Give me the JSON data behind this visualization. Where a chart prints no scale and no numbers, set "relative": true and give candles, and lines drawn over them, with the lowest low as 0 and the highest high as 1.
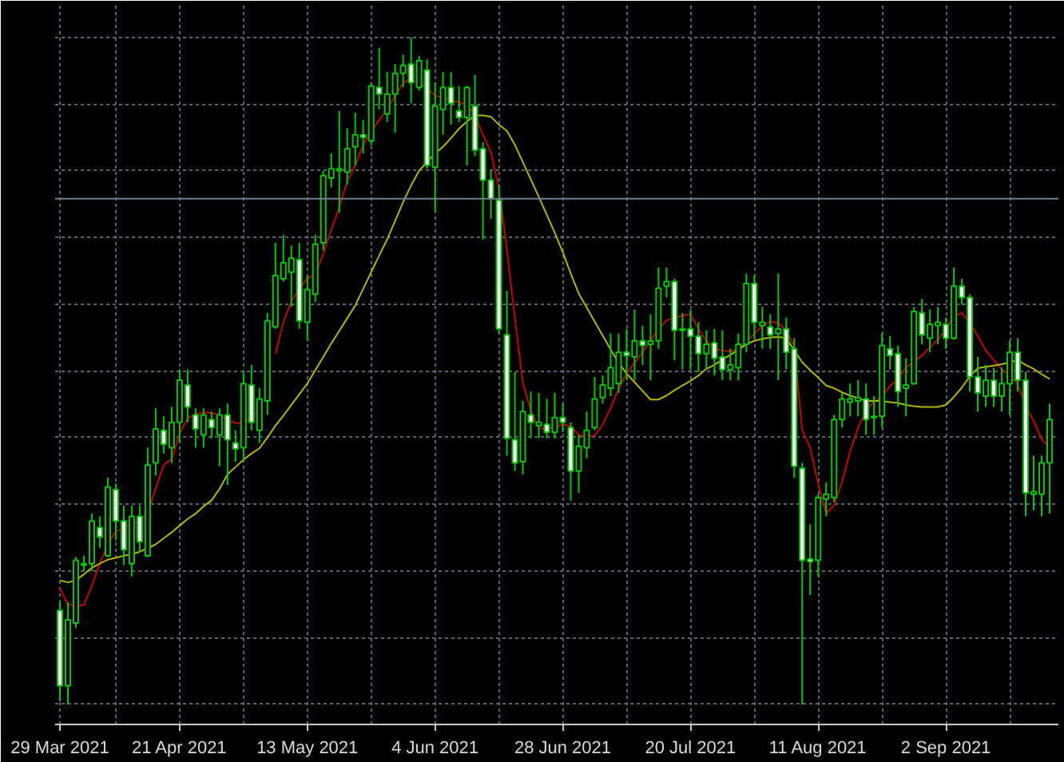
{
  "chart_data": {
    "type": "candlestick",
    "relative": true,
    "color": "#00c800",
    "grid": true,
    "categories": [
      "29 Mar 2021",
      null,
      null,
      null,
      null,
      null,
      null,
      null,
      null,
      null,
      null,
      null,
      null,
      null,
      null,
      "21 Apr 2021",
      null,
      null,
      null,
      null,
      null,
      null,
      null,
      null,
      null,
      null,
      null,
      null,
      null,
      null,
      null,
      "13 May 2021",
      null,
      null,
      null,
      null,
      null,
      null,
      null,
      null,
      null,
      null,
      null,
      null,
      null,
      null,
      null,
      "4 Jun 2021",
      null,
      null,
      null,
      null,
      null,
      null,
      null,
      null,
      null,
      null,
      null,
      null,
      null,
      null,
      null,
      "28 Jun 2021",
      null,
      null,
      null,
      null,
      null,
      null,
      null,
      null,
      null,
      null,
      null,
      null,
      null,
      null,
      null,
      "20 Jul 2021",
      null,
      null,
      null,
      null,
      null,
      null,
      null,
      null,
      null,
      null,
      null,
      null,
      null,
      null,
      null,
      "11 Aug 2021",
      null,
      null,
      null,
      null,
      null,
      null,
      null,
      null,
      null,
      null,
      null,
      null,
      null,
      null,
      null,
      "2 Sep 2021",
      null,
      null,
      null,
      null,
      null,
      null,
      null,
      null,
      null,
      null,
      null,
      null,
      null
    ],
    "ohlc": [
      [
        0.141,
        0.153,
        0.005,
        0.028
      ],
      [
        0.028,
        0.153,
        0,
        0.127
      ],
      [
        0.122,
        0.221,
        0.115,
        0.216
      ],
      [
        0.209,
        0.223,
        0.2,
        0.211
      ],
      [
        0.211,
        0.286,
        0.2,
        0.275
      ],
      [
        0.265,
        0.282,
        0.235,
        0.251
      ],
      [
        0.223,
        0.34,
        0.221,
        0.326
      ],
      [
        0.322,
        0.331,
        0.246,
        0.275
      ],
      [
        0.275,
        0.298,
        0.209,
        0.232
      ],
      [
        0.211,
        0.298,
        0.192,
        0.282
      ],
      [
        0.282,
        0.298,
        0.228,
        0.244
      ],
      [
        0.223,
        0.385,
        0.221,
        0.359
      ],
      [
        0.362,
        0.444,
        0.343,
        0.413
      ],
      [
        0.411,
        0.432,
        0.376,
        0.39
      ],
      [
        0.385,
        0.446,
        0.362,
        0.423
      ],
      [
        0.423,
        0.502,
        0.392,
        0.486
      ],
      [
        0.479,
        0.502,
        0.423,
        0.446
      ],
      [
        0.434,
        0.444,
        0.385,
        0.413
      ],
      [
        0.404,
        0.444,
        0.385,
        0.434
      ],
      [
        0.427,
        0.439,
        0.399,
        0.415
      ],
      [
        0.404,
        0.444,
        0.357,
        0.434
      ],
      [
        0.434,
        0.451,
        0.329,
        0.397
      ],
      [
        0.392,
        0.411,
        0.364,
        0.383
      ],
      [
        0.385,
        0.498,
        0.364,
        0.481
      ],
      [
        0.479,
        0.509,
        0.411,
        0.423
      ],
      [
        0.411,
        0.474,
        0.392,
        0.458
      ],
      [
        0.455,
        0.587,
        0.434,
        0.575
      ],
      [
        0.566,
        0.692,
        0.563,
        0.643
      ],
      [
        0.638,
        0.704,
        0.634,
        0.662
      ],
      [
        0.648,
        0.688,
        0.596,
        0.669
      ],
      [
        0.667,
        0.692,
        0.563,
        0.575
      ],
      [
        0.573,
        0.643,
        0.545,
        0.622
      ],
      [
        0.615,
        0.704,
        0.603,
        0.69
      ],
      [
        0.692,
        0.8,
        0.681,
        0.793
      ],
      [
        0.789,
        0.826,
        0.775,
        0.803
      ],
      [
        0.8,
        0.89,
        0.737,
        0.803
      ],
      [
        0.798,
        0.864,
        0.779,
        0.833
      ],
      [
        0.836,
        0.887,
        0.808,
        0.854
      ],
      [
        0.854,
        0.876,
        0.826,
        0.85
      ],
      [
        0.845,
        0.932,
        0.838,
        0.927
      ],
      [
        0.925,
        0.984,
        0.892,
        0.915
      ],
      [
        0.885,
        0.948,
        0.873,
        0.915
      ],
      [
        0.915,
        0.96,
        0.857,
        0.946
      ],
      [
        0.946,
        0.974,
        0.925,
        0.958
      ],
      [
        0.96,
        1,
        0.901,
        0.932
      ],
      [
        0.925,
        0.972,
        0.92,
        0.965
      ],
      [
        0.951,
        0.967,
        0.803,
        0.808
      ],
      [
        0.805,
        0.932,
        0.739,
        0.897
      ],
      [
        0.892,
        0.948,
        0.854,
        0.925
      ],
      [
        0.925,
        0.948,
        0.869,
        0.901
      ],
      [
        0.89,
        0.927,
        0.873,
        0.88
      ],
      [
        0.88,
        0.927,
        0.808,
        0.925
      ],
      [
        0.897,
        0.944,
        0.822,
        0.831
      ],
      [
        0.833,
        0.843,
        0.697,
        0.786
      ],
      [
        0.786,
        0.8,
        0.728,
        0.758
      ],
      [
        0.756,
        0.779,
        0.556,
        0.563
      ],
      [
        0.554,
        0.62,
        0.373,
        0.399
      ],
      [
        0.397,
        0.498,
        0.35,
        0.362
      ],
      [
        0.364,
        0.455,
        0.345,
        0.439
      ],
      [
        0.434,
        0.469,
        0.399,
        0.423
      ],
      [
        0.418,
        0.467,
        0.399,
        0.423
      ],
      [
        0.42,
        0.458,
        0.399,
        0.408
      ],
      [
        0.408,
        0.467,
        0.399,
        0.43
      ],
      [
        0.43,
        0.451,
        0.408,
        0.423
      ],
      [
        0.415,
        0.423,
        0.305,
        0.35
      ],
      [
        0.35,
        0.404,
        0.317,
        0.387
      ],
      [
        0.385,
        0.439,
        0.369,
        0.411
      ],
      [
        0.415,
        0.491,
        0.411,
        0.458
      ],
      [
        0.46,
        0.493,
        0.451,
        0.479
      ],
      [
        0.474,
        0.556,
        0.462,
        0.505
      ],
      [
        0.481,
        0.556,
        0.467,
        0.528
      ],
      [
        0.528,
        0.563,
        0.486,
        0.523
      ],
      [
        0.521,
        0.592,
        0.486,
        0.545
      ],
      [
        0.545,
        0.568,
        0.509,
        0.538
      ],
      [
        0.54,
        0.585,
        0.486,
        0.545
      ],
      [
        0.545,
        0.655,
        0.533,
        0.624
      ],
      [
        0.627,
        0.655,
        0.61,
        0.634
      ],
      [
        0.634,
        0.638,
        0.516,
        0.561
      ],
      [
        0.563,
        0.587,
        0.502,
        0.561
      ],
      [
        0.563,
        0.592,
        0.502,
        0.552
      ],
      [
        0.552,
        0.573,
        0.498,
        0.526
      ],
      [
        0.526,
        0.561,
        0.502,
        0.54
      ],
      [
        0.542,
        0.563,
        0.493,
        0.519
      ],
      [
        0.521,
        0.561,
        0.486,
        0.502
      ],
      [
        0.502,
        0.533,
        0.486,
        0.509
      ],
      [
        0.505,
        0.556,
        0.486,
        0.54
      ],
      [
        0.54,
        0.646,
        0.528,
        0.631
      ],
      [
        0.631,
        0.643,
        0.549,
        0.573
      ],
      [
        0.568,
        0.596,
        0.533,
        0.573
      ],
      [
        0.566,
        0.585,
        0.533,
        0.554
      ],
      [
        0.556,
        0.646,
        0.486,
        0.563
      ],
      [
        0.563,
        0.58,
        0.502,
        0.528
      ],
      [
        0.533,
        0.549,
        0.34,
        0.357
      ],
      [
        0.354,
        0.362,
        0,
        0.216
      ],
      [
        0.218,
        0.27,
        0.164,
        0.214
      ],
      [
        0.216,
        0.315,
        0.192,
        0.31
      ],
      [
        0.308,
        0.333,
        0.282,
        0.315
      ],
      [
        0.31,
        0.434,
        0.303,
        0.427
      ],
      [
        0.427,
        0.467,
        0.415,
        0.458
      ],
      [
        0.453,
        0.481,
        0.432,
        0.458
      ],
      [
        0.455,
        0.486,
        0.432,
        0.46
      ],
      [
        0.458,
        0.481,
        0.404,
        0.427
      ],
      [
        0.43,
        0.462,
        0.404,
        0.432
      ],
      [
        0.432,
        0.556,
        0.415,
        0.538
      ],
      [
        0.533,
        0.552,
        0.502,
        0.523
      ],
      [
        0.526,
        0.538,
        0.446,
        0.469
      ],
      [
        0.474,
        0.519,
        0.432,
        0.479
      ],
      [
        0.481,
        0.596,
        0.479,
        0.589
      ],
      [
        0.587,
        0.608,
        0.54,
        0.554
      ],
      [
        0.549,
        0.592,
        0.528,
        0.57
      ],
      [
        0.568,
        0.596,
        0.54,
        0.573
      ],
      [
        0.57,
        0.58,
        0.533,
        0.549
      ],
      [
        0.549,
        0.655,
        0.547,
        0.627
      ],
      [
        0.627,
        0.638,
        0.599,
        0.61
      ],
      [
        0.61,
        0.615,
        0.469,
        0.491
      ],
      [
        0.491,
        0.521,
        0.439,
        0.467
      ],
      [
        0.462,
        0.509,
        0.446,
        0.486
      ],
      [
        0.486,
        0.505,
        0.446,
        0.462
      ],
      [
        0.462,
        0.505,
        0.439,
        0.481
      ],
      [
        0.481,
        0.545,
        0.434,
        0.528
      ],
      [
        0.528,
        0.549,
        0.469,
        0.486
      ],
      [
        0.486,
        0.498,
        0.282,
        0.317
      ],
      [
        0.315,
        0.373,
        0.291,
        0.319
      ],
      [
        0.315,
        0.373,
        0.282,
        0.362
      ],
      [
        0.362,
        0.451,
        0.286,
        0.427
      ]
    ],
    "series": [
      {
        "type": "line",
        "color": "#c80000",
        "values": [
          0.174,
          0.15,
          0.148,
          0.149,
          0.178,
          0.211,
          0.241,
          0.259,
          0.265,
          0.271,
          0.275,
          0.287,
          0.324,
          0.359,
          0.368,
          0.406,
          0.429,
          0.435,
          0.438,
          0.437,
          0.434,
          0.426,
          0.422,
          0.421,
          0.432,
          0.442,
          null,
          0.526,
          0.573,
          0.605,
          0.622,
          0.639,
          0.644,
          0.676,
          0.712,
          0.745,
          0.784,
          0.808,
          0.839,
          0.859,
          0.876,
          0.892,
          0.913,
          0.932,
          0.937,
          0.932,
          0.923,
          0.913,
          0.909,
          0.906,
          0.903,
          0.899,
          0.883,
          0.854,
          0.828,
          0.774,
          0.683,
          0.58,
          0.482,
          0.441,
          0.414,
          0.413,
          0.416,
          0.42,
          0.417,
          0.404,
          0.401,
          0.403,
          0.419,
          0.444,
          0.473,
          0.496,
          0.512,
          0.528,
          0.546,
          0.562,
          0.576,
          0.579,
          0.583,
          0.585,
          0.563,
          0.545,
          0.533,
          0.531,
          0.529,
          0.533,
          0.544,
          0.556,
          0.567,
          0.574,
          0.572,
          0.561,
          0.537,
          0.411,
          0.385,
          0.331,
          0.286,
          0.299,
          0.334,
          0.379,
          0.415,
          0.441,
          0.454,
          0.462,
          0.477,
          0.488,
          0.505,
          0.514,
          0.523,
          0.535,
          0.547,
          0.562,
          0.582,
          0.587,
          0.572,
          0.552,
          0.531,
          0.516,
          0.503,
          0.493,
          0.481,
          0.447,
          0.425,
          0.398,
          0.385
        ]
      },
      {
        "type": "line",
        "color": "#b4b400",
        "values": [
          0.186,
          0.183,
          0.186,
          0.195,
          0.205,
          0.211,
          0.217,
          0.22,
          0.223,
          0.225,
          0.229,
          0.234,
          0.24,
          0.249,
          0.258,
          0.268,
          0.278,
          0.286,
          0.297,
          0.306,
          0.323,
          0.345,
          0.356,
          0.367,
          0.376,
          0.384,
          0.4,
          0.418,
          0.433,
          0.449,
          0.465,
          0.481,
          0.501,
          0.521,
          0.541,
          0.56,
          0.579,
          0.598,
          0.623,
          0.648,
          0.673,
          0.697,
          0.725,
          0.753,
          0.778,
          0.8,
          0.813,
          0.826,
          0.836,
          0.849,
          0.863,
          0.874,
          0.883,
          0.883,
          0.881,
          0.869,
          0.86,
          0.839,
          0.813,
          0.787,
          0.761,
          0.734,
          0.707,
          0.678,
          0.646,
          0.616,
          0.595,
          0.574,
          0.553,
          0.532,
          0.512,
          0.496,
          0.483,
          0.47,
          0.457,
          0.457,
          0.463,
          0.471,
          0.478,
          0.485,
          0.493,
          0.503,
          0.509,
          0.517,
          0.524,
          0.532,
          0.54,
          0.545,
          0.548,
          0.55,
          0.551,
          0.549,
          0.531,
          0.513,
          0.501,
          0.49,
          0.478,
          0.474,
          0.468,
          0.463,
          0.459,
          0.455,
          0.455,
          0.455,
          0.453,
          0.452,
          0.449,
          0.447,
          0.446,
          0.446,
          0.446,
          0.449,
          0.461,
          0.475,
          0.492,
          0.504,
          0.506,
          0.508,
          0.51,
          0.513,
          0.516,
          0.509,
          0.503,
          0.495,
          0.488
        ]
      }
    ],
    "ref_lines": [
      {
        "axis": "y",
        "value": 0.758,
        "color": "#708090"
      }
    ]
  }
}
